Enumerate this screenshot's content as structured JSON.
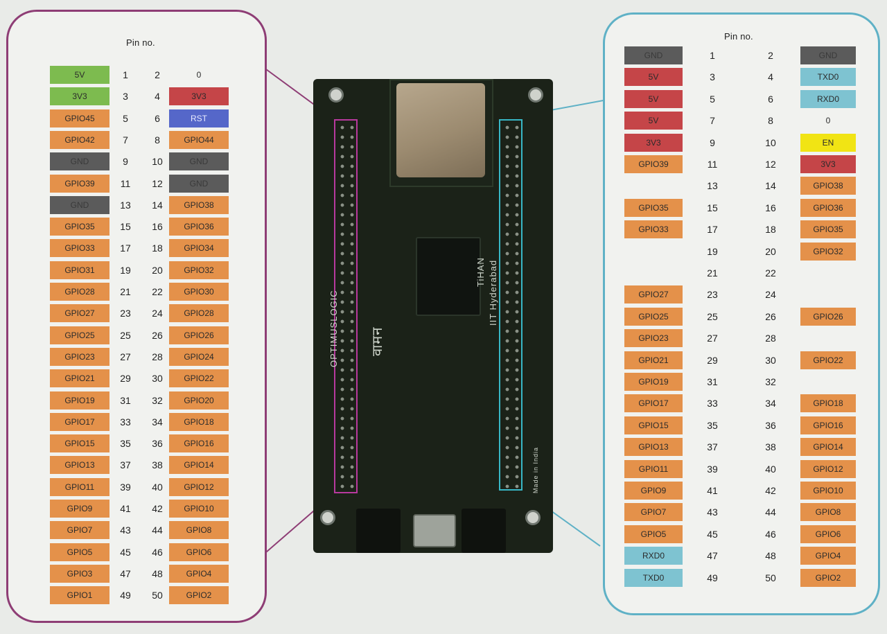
{
  "pin_header_label": "Pin no.",
  "colors": {
    "green": "#7dbb4f",
    "orange": "#e4914a",
    "red": "#c54548",
    "blue": "#5567c9",
    "gray": "#5b5b5b",
    "light_blue": "#7ec3d1",
    "yellow": "#f1e414",
    "left_frame": "#8e3d75",
    "right_frame": "#5fb1c6"
  },
  "left_connector": {
    "rows": [
      {
        "left": {
          "text": "5V",
          "color": "green"
        },
        "a": "1",
        "b": "2",
        "right": {
          "text": "0",
          "color": "none"
        }
      },
      {
        "left": {
          "text": "3V3",
          "color": "green"
        },
        "a": "3",
        "b": "4",
        "right": {
          "text": "3V3",
          "color": "red"
        }
      },
      {
        "left": {
          "text": "GPIO45",
          "color": "orange"
        },
        "a": "5",
        "b": "6",
        "right": {
          "text": "RST",
          "color": "blue"
        }
      },
      {
        "left": {
          "text": "GPIO42",
          "color": "orange"
        },
        "a": "7",
        "b": "8",
        "right": {
          "text": "GPIO44",
          "color": "orange"
        }
      },
      {
        "left": {
          "text": "GND",
          "color": "gray"
        },
        "a": "9",
        "b": "10",
        "right": {
          "text": "GND",
          "color": "gray"
        }
      },
      {
        "left": {
          "text": "GPIO39",
          "color": "orange"
        },
        "a": "11",
        "b": "12",
        "right": {
          "text": "GND",
          "color": "gray"
        }
      },
      {
        "left": {
          "text": "GND",
          "color": "gray"
        },
        "a": "13",
        "b": "14",
        "right": {
          "text": "GPIO38",
          "color": "orange"
        }
      },
      {
        "left": {
          "text": "GPIO35",
          "color": "orange"
        },
        "a": "15",
        "b": "16",
        "right": {
          "text": "GPIO36",
          "color": "orange"
        }
      },
      {
        "left": {
          "text": "GPIO33",
          "color": "orange"
        },
        "a": "17",
        "b": "18",
        "right": {
          "text": "GPIO34",
          "color": "orange"
        }
      },
      {
        "left": {
          "text": "GPIO31",
          "color": "orange"
        },
        "a": "19",
        "b": "20",
        "right": {
          "text": "GPIO32",
          "color": "orange"
        }
      },
      {
        "left": {
          "text": "GPIO28",
          "color": "orange"
        },
        "a": "21",
        "b": "22",
        "right": {
          "text": "GPIO30",
          "color": "orange"
        }
      },
      {
        "left": {
          "text": "GPIO27",
          "color": "orange"
        },
        "a": "23",
        "b": "24",
        "right": {
          "text": "GPIO28",
          "color": "orange"
        }
      },
      {
        "left": {
          "text": "GPIO25",
          "color": "orange"
        },
        "a": "25",
        "b": "26",
        "right": {
          "text": "GPIO26",
          "color": "orange"
        }
      },
      {
        "left": {
          "text": "GPIO23",
          "color": "orange"
        },
        "a": "27",
        "b": "28",
        "right": {
          "text": "GPIO24",
          "color": "orange"
        }
      },
      {
        "left": {
          "text": "GPIO21",
          "color": "orange"
        },
        "a": "29",
        "b": "30",
        "right": {
          "text": "GPIO22",
          "color": "orange"
        }
      },
      {
        "left": {
          "text": "GPIO19",
          "color": "orange"
        },
        "a": "31",
        "b": "32",
        "right": {
          "text": "GPIO20",
          "color": "orange"
        }
      },
      {
        "left": {
          "text": "GPIO17",
          "color": "orange"
        },
        "a": "33",
        "b": "34",
        "right": {
          "text": "GPIO18",
          "color": "orange"
        }
      },
      {
        "left": {
          "text": "GPIO15",
          "color": "orange"
        },
        "a": "35",
        "b": "36",
        "right": {
          "text": "GPIO16",
          "color": "orange"
        }
      },
      {
        "left": {
          "text": "GPIO13",
          "color": "orange"
        },
        "a": "37",
        "b": "38",
        "right": {
          "text": "GPIO14",
          "color": "orange"
        }
      },
      {
        "left": {
          "text": "GPIO11",
          "color": "orange"
        },
        "a": "39",
        "b": "40",
        "right": {
          "text": "GPIO12",
          "color": "orange"
        }
      },
      {
        "left": {
          "text": "GPIO9",
          "color": "orange"
        },
        "a": "41",
        "b": "42",
        "right": {
          "text": "GPIO10",
          "color": "orange"
        }
      },
      {
        "left": {
          "text": "GPIO7",
          "color": "orange"
        },
        "a": "43",
        "b": "44",
        "right": {
          "text": "GPIO8",
          "color": "orange"
        }
      },
      {
        "left": {
          "text": "GPIO5",
          "color": "orange"
        },
        "a": "45",
        "b": "46",
        "right": {
          "text": "GPIO6",
          "color": "orange"
        }
      },
      {
        "left": {
          "text": "GPIO3",
          "color": "orange"
        },
        "a": "47",
        "b": "48",
        "right": {
          "text": "GPIO4",
          "color": "orange"
        }
      },
      {
        "left": {
          "text": "GPIO1",
          "color": "orange"
        },
        "a": "49",
        "b": "50",
        "right": {
          "text": "GPIO2",
          "color": "orange"
        }
      }
    ]
  },
  "right_connector": {
    "rows": [
      {
        "left": {
          "text": "GND",
          "color": "gray"
        },
        "a": "1",
        "b": "2",
        "right": {
          "text": "GND",
          "color": "gray"
        }
      },
      {
        "left": {
          "text": "5V",
          "color": "red"
        },
        "a": "3",
        "b": "4",
        "right": {
          "text": "TXD0",
          "color": "light_blue"
        }
      },
      {
        "left": {
          "text": "5V",
          "color": "red"
        },
        "a": "5",
        "b": "6",
        "right": {
          "text": "RXD0",
          "color": "light_blue"
        }
      },
      {
        "left": {
          "text": "5V",
          "color": "red"
        },
        "a": "7",
        "b": "8",
        "right": {
          "text": "0",
          "color": "none"
        }
      },
      {
        "left": {
          "text": "3V3",
          "color": "red"
        },
        "a": "9",
        "b": "10",
        "right": {
          "text": "EN",
          "color": "yellow"
        }
      },
      {
        "left": {
          "text": "GPIO39",
          "color": "orange"
        },
        "a": "11",
        "b": "12",
        "right": {
          "text": "3V3",
          "color": "red"
        }
      },
      {
        "left": {
          "text": "",
          "color": "none"
        },
        "a": "13",
        "b": "14",
        "right": {
          "text": "GPIO38",
          "color": "orange"
        }
      },
      {
        "left": {
          "text": "GPIO35",
          "color": "orange"
        },
        "a": "15",
        "b": "16",
        "right": {
          "text": "GPIO36",
          "color": "orange"
        }
      },
      {
        "left": {
          "text": "GPIO33",
          "color": "orange"
        },
        "a": "17",
        "b": "18",
        "right": {
          "text": "GPIO35",
          "color": "orange"
        }
      },
      {
        "left": {
          "text": "",
          "color": "none"
        },
        "a": "19",
        "b": "20",
        "right": {
          "text": "GPIO32",
          "color": "orange"
        }
      },
      {
        "left": {
          "text": "",
          "color": "none"
        },
        "a": "21",
        "b": "22",
        "right": {
          "text": "",
          "color": "none"
        }
      },
      {
        "left": {
          "text": "GPIO27",
          "color": "orange"
        },
        "a": "23",
        "b": "24",
        "right": {
          "text": "",
          "color": "none"
        }
      },
      {
        "left": {
          "text": "GPIO25",
          "color": "orange"
        },
        "a": "25",
        "b": "26",
        "right": {
          "text": "GPIO26",
          "color": "orange"
        }
      },
      {
        "left": {
          "text": "GPIO23",
          "color": "orange"
        },
        "a": "27",
        "b": "28",
        "right": {
          "text": "",
          "color": "none"
        }
      },
      {
        "left": {
          "text": "GPIO21",
          "color": "orange"
        },
        "a": "29",
        "b": "30",
        "right": {
          "text": "GPIO22",
          "color": "orange"
        }
      },
      {
        "left": {
          "text": "GPIO19",
          "color": "orange"
        },
        "a": "31",
        "b": "32",
        "right": {
          "text": "",
          "color": "none"
        }
      },
      {
        "left": {
          "text": "GPIO17",
          "color": "orange"
        },
        "a": "33",
        "b": "34",
        "right": {
          "text": "GPIO18",
          "color": "orange"
        }
      },
      {
        "left": {
          "text": "GPIO15",
          "color": "orange"
        },
        "a": "35",
        "b": "36",
        "right": {
          "text": "GPIO16",
          "color": "orange"
        }
      },
      {
        "left": {
          "text": "GPIO13",
          "color": "orange"
        },
        "a": "37",
        "b": "38",
        "right": {
          "text": "GPIO14",
          "color": "orange"
        }
      },
      {
        "left": {
          "text": "GPIO11",
          "color": "orange"
        },
        "a": "39",
        "b": "40",
        "right": {
          "text": "GPIO12",
          "color": "orange"
        }
      },
      {
        "left": {
          "text": "GPIO9",
          "color": "orange"
        },
        "a": "41",
        "b": "42",
        "right": {
          "text": "GPIO10",
          "color": "orange"
        }
      },
      {
        "left": {
          "text": "GPIO7",
          "color": "orange"
        },
        "a": "43",
        "b": "44",
        "right": {
          "text": "GPIO8",
          "color": "orange"
        }
      },
      {
        "left": {
          "text": "GPIO5",
          "color": "orange"
        },
        "a": "45",
        "b": "46",
        "right": {
          "text": "GPIO6",
          "color": "orange"
        }
      },
      {
        "left": {
          "text": "RXD0",
          "color": "light_blue"
        },
        "a": "47",
        "b": "48",
        "right": {
          "text": "GPIO4",
          "color": "orange"
        }
      },
      {
        "left": {
          "text": "TXD0",
          "color": "light_blue"
        },
        "a": "49",
        "b": "50",
        "right": {
          "text": "GPIO2",
          "color": "orange"
        }
      }
    ]
  },
  "board": {
    "silkscreen_left": "OPTIMUSLOGIC",
    "silkscreen_hindi": "वामन",
    "silkscreen_right_1": "TiHAN",
    "silkscreen_right_2": "IIT Hyderabad",
    "silkscreen_made": "Made in India"
  }
}
